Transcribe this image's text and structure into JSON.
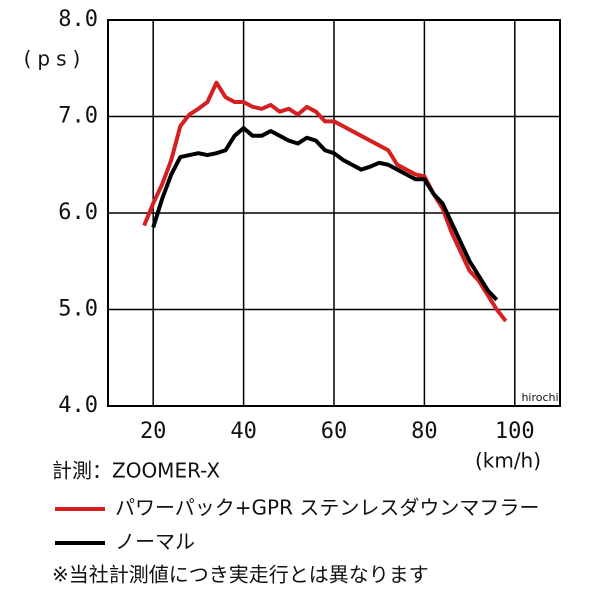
{
  "chart_data": {
    "type": "line",
    "y_label": "(ps)",
    "x_label": "(km/h)",
    "watermark": "hirochi",
    "measured": "計測：ZOOMER-X",
    "note": "※当社計測値につき実走行とは異なります",
    "x": [
      18,
      20,
      22,
      24,
      26,
      28,
      30,
      32,
      34,
      36,
      38,
      40,
      42,
      44,
      46,
      48,
      50,
      52,
      54,
      56,
      58,
      60,
      62,
      64,
      66,
      68,
      70,
      72,
      74,
      76,
      78,
      80,
      82,
      84,
      86,
      88,
      90,
      92,
      94,
      96,
      98
    ],
    "series": [
      {
        "name": "パワーパック+GPR ステンレスダウンマフラー",
        "color": "#d42020",
        "values": [
          5.87,
          6.1,
          6.3,
          6.55,
          6.9,
          7.02,
          7.08,
          7.15,
          7.35,
          7.2,
          7.15,
          7.15,
          7.1,
          7.08,
          7.12,
          7.05,
          7.08,
          7.02,
          7.1,
          7.05,
          6.95,
          6.95,
          6.9,
          6.85,
          6.8,
          6.75,
          6.7,
          6.65,
          6.5,
          6.45,
          6.4,
          6.38,
          6.2,
          6.05,
          5.8,
          5.6,
          5.4,
          5.3,
          5.15,
          5.0,
          4.88
        ]
      },
      {
        "name": "ノーマル",
        "color": "#000000",
        "values": [
          null,
          5.85,
          6.15,
          6.4,
          6.58,
          6.6,
          6.62,
          6.6,
          6.62,
          6.65,
          6.8,
          6.88,
          6.8,
          6.8,
          6.85,
          6.8,
          6.75,
          6.72,
          6.78,
          6.75,
          6.65,
          6.62,
          6.55,
          6.5,
          6.45,
          6.48,
          6.52,
          6.5,
          6.45,
          6.4,
          6.35,
          6.35,
          6.2,
          6.1,
          5.9,
          5.7,
          5.5,
          5.35,
          5.2,
          5.1,
          null
        ]
      }
    ],
    "xlim": [
      10,
      110
    ],
    "xticks": [
      20,
      40,
      60,
      80,
      100
    ],
    "ylim": [
      4,
      8
    ],
    "yticks": [
      {
        "value": 4,
        "label": "4.0"
      },
      {
        "value": 5,
        "label": "5.0"
      },
      {
        "value": 6,
        "label": "6.0"
      },
      {
        "value": 7,
        "label": "7.0"
      },
      {
        "value": 8,
        "label": "8.0"
      }
    ],
    "grid": true
  }
}
